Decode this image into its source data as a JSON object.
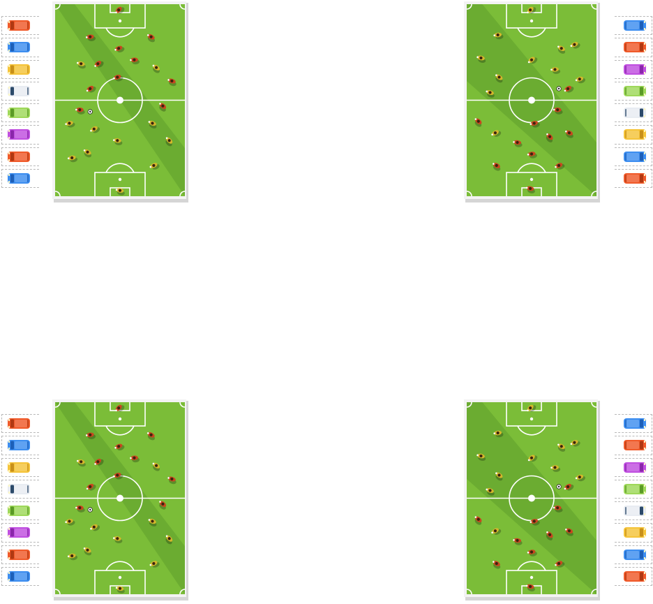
{
  "colors": {
    "grass_light": "#7bbd38",
    "grass_dark": "#5f9e2b",
    "pitch_lines": "#ffffff",
    "team_red": "#c9471f",
    "team_yellow": "#d4b62c",
    "ball": "#ffffff"
  },
  "pitch_icons": [
    "soccer-field-icon",
    "player-icon",
    "soccer-ball-icon"
  ],
  "panels": [
    {
      "left_cars": [
        "orange",
        "blue",
        "yellow",
        "white",
        "green",
        "purple",
        "orange",
        "blue"
      ],
      "right_cars": [
        "blue",
        "orange",
        "purple",
        "green",
        "white",
        "yellow",
        "blue",
        "orange"
      ]
    },
    {
      "left_cars": [
        "orange",
        "blue",
        "yellow",
        "white",
        "green",
        "purple",
        "orange",
        "blue"
      ],
      "right_cars": [
        "blue",
        "orange",
        "purple",
        "green",
        "white",
        "yellow",
        "blue",
        "orange"
      ]
    }
  ],
  "car_colors": {
    "orange": "#f05a2a",
    "blue": "#3d8ef0",
    "yellow": "#f5c43a",
    "white": "#e8ecf2",
    "green": "#9ed85a",
    "purple": "#c04fe0"
  },
  "car_detail_colors": {
    "orange": "#b03812",
    "blue": "#1d5fb8",
    "yellow": "#c8901a",
    "white": "#2c4a6a",
    "green": "#5a9a26",
    "purple": "#8a26aa"
  }
}
